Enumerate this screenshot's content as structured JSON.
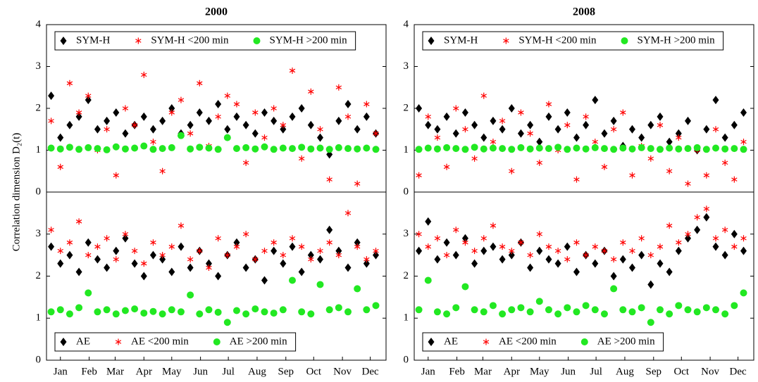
{
  "chart_data": [
    {
      "type": "scatter",
      "title": "2000",
      "ylabel": "Correlation dimension D₂(t)",
      "legend": "top",
      "xlim": [
        0,
        366
      ],
      "ylim": [
        0,
        4
      ],
      "yticks": [
        0,
        1,
        2,
        3,
        4
      ],
      "x": [
        5,
        15,
        25,
        35,
        45,
        55,
        65,
        75,
        85,
        95,
        105,
        115,
        125,
        135,
        145,
        155,
        165,
        175,
        185,
        195,
        205,
        215,
        225,
        235,
        245,
        255,
        265,
        275,
        285,
        295,
        305,
        315,
        325,
        335,
        345,
        355
      ],
      "series": [
        {
          "name": "SYM-H",
          "color": "#000000",
          "marker": "diamond",
          "values": [
            2.3,
            1.3,
            1.6,
            1.8,
            2.2,
            1.5,
            1.7,
            1.9,
            1.4,
            1.6,
            1.8,
            1.5,
            1.7,
            2.0,
            1.4,
            1.6,
            1.9,
            1.7,
            2.1,
            1.5,
            1.8,
            1.6,
            1.4,
            1.9,
            1.7,
            1.5,
            1.8,
            2.0,
            1.6,
            1.3,
            0.9,
            1.7,
            2.1,
            1.5,
            1.8,
            1.4
          ]
        },
        {
          "name": "SYM-H <200 min",
          "color": "#ff0000",
          "marker": "star",
          "values": [
            1.7,
            0.6,
            2.6,
            1.9,
            2.3,
            1.0,
            1.5,
            0.4,
            2.0,
            1.6,
            2.8,
            1.2,
            0.5,
            1.9,
            2.2,
            1.4,
            2.6,
            1.1,
            1.8,
            2.3,
            2.1,
            0.7,
            1.9,
            1.3,
            2.0,
            1.6,
            2.9,
            0.8,
            2.4,
            1.5,
            0.3,
            2.5,
            1.8,
            0.2,
            2.1,
            1.4
          ]
        },
        {
          "name": "SYM-H >200 min",
          "color": "#22e822",
          "marker": "circle",
          "values": [
            1.05,
            1.03,
            1.07,
            1.02,
            1.06,
            1.04,
            1.01,
            1.08,
            1.03,
            1.05,
            1.1,
            1.02,
            1.04,
            1.06,
            1.35,
            1.03,
            1.07,
            1.05,
            1.02,
            1.3,
            1.04,
            1.06,
            1.03,
            1.08,
            1.02,
            1.05,
            1.04,
            1.07,
            1.03,
            1.05,
            1.02,
            1.06,
            1.04,
            1.03,
            1.05,
            1.02
          ]
        }
      ]
    },
    {
      "type": "scatter",
      "title": "2008",
      "legend": "top",
      "xlim": [
        0,
        366
      ],
      "ylim": [
        0,
        4
      ],
      "yticks": [
        0,
        1,
        2,
        3,
        4
      ],
      "x": [
        5,
        15,
        25,
        35,
        45,
        55,
        65,
        75,
        85,
        95,
        105,
        115,
        125,
        135,
        145,
        155,
        165,
        175,
        185,
        195,
        205,
        215,
        225,
        235,
        245,
        255,
        265,
        275,
        285,
        295,
        305,
        315,
        325,
        335,
        345,
        355
      ],
      "series": [
        {
          "name": "SYM-H",
          "color": "#000000",
          "marker": "diamond",
          "values": [
            2.0,
            1.6,
            1.5,
            1.8,
            1.4,
            1.9,
            1.6,
            1.3,
            1.7,
            1.5,
            2.0,
            1.4,
            1.6,
            1.2,
            1.8,
            1.5,
            1.9,
            1.3,
            1.6,
            2.2,
            1.4,
            1.7,
            1.1,
            1.5,
            1.3,
            1.6,
            1.8,
            1.2,
            1.4,
            1.7,
            1.0,
            1.5,
            2.2,
            1.3,
            1.6,
            1.9
          ]
        },
        {
          "name": "SYM-H <200 min",
          "color": "#ff0000",
          "marker": "star",
          "values": [
            0.4,
            1.8,
            1.3,
            0.6,
            2.0,
            1.5,
            0.8,
            2.3,
            1.2,
            1.7,
            0.5,
            1.9,
            1.4,
            0.7,
            2.1,
            1.0,
            1.6,
            0.3,
            1.8,
            1.2,
            0.6,
            1.5,
            1.9,
            0.4,
            1.1,
            0.8,
            1.6,
            0.5,
            1.3,
            0.2,
            1.0,
            0.4,
            1.5,
            0.7,
            0.3,
            1.2
          ]
        },
        {
          "name": "SYM-H >200 min",
          "color": "#22e822",
          "marker": "circle",
          "values": [
            1.02,
            1.05,
            1.03,
            1.06,
            1.04,
            1.02,
            1.07,
            1.03,
            1.05,
            1.04,
            1.02,
            1.06,
            1.03,
            1.05,
            1.04,
            1.07,
            1.02,
            1.05,
            1.03,
            1.06,
            1.04,
            1.02,
            1.05,
            1.03,
            1.06,
            1.04,
            1.02,
            1.05,
            1.03,
            1.04,
            1.06,
            1.02,
            1.05,
            1.03,
            1.04,
            1.02
          ]
        }
      ]
    },
    {
      "type": "scatter",
      "legend": "bottom",
      "xlim": [
        0,
        366
      ],
      "ylim": [
        0,
        4
      ],
      "yticks": [
        0,
        1,
        2,
        3
      ],
      "xticks": [
        {
          "value": 15,
          "label": "Jan"
        },
        {
          "value": 46,
          "label": "Feb"
        },
        {
          "value": 74,
          "label": "Mar"
        },
        {
          "value": 105,
          "label": "Apr"
        },
        {
          "value": 135,
          "label": "May"
        },
        {
          "value": 166,
          "label": "Jun"
        },
        {
          "value": 196,
          "label": "Jul"
        },
        {
          "value": 227,
          "label": "Aug"
        },
        {
          "value": 258,
          "label": "Sep"
        },
        {
          "value": 288,
          "label": "Oct"
        },
        {
          "value": 319,
          "label": "Nov"
        },
        {
          "value": 349,
          "label": "Dec"
        }
      ],
      "x": [
        5,
        15,
        25,
        35,
        45,
        55,
        65,
        75,
        85,
        95,
        105,
        115,
        125,
        135,
        145,
        155,
        165,
        175,
        185,
        195,
        205,
        215,
        225,
        235,
        245,
        255,
        265,
        275,
        285,
        295,
        305,
        315,
        325,
        335,
        345,
        355
      ],
      "series": [
        {
          "name": "AE",
          "color": "#000000",
          "marker": "diamond",
          "values": [
            2.7,
            2.3,
            2.5,
            2.1,
            2.8,
            2.4,
            2.2,
            2.6,
            2.9,
            2.3,
            2.0,
            2.5,
            2.4,
            2.1,
            2.7,
            2.2,
            2.6,
            2.3,
            2.0,
            2.5,
            2.8,
            2.2,
            2.4,
            1.9,
            2.6,
            2.3,
            2.7,
            2.1,
            2.5,
            2.4,
            3.1,
            2.6,
            2.2,
            2.8,
            2.3,
            2.5
          ]
        },
        {
          "name": "AE <200 min",
          "color": "#ff0000",
          "marker": "star",
          "values": [
            3.1,
            2.6,
            2.8,
            3.3,
            2.5,
            2.7,
            2.9,
            2.4,
            3.0,
            2.6,
            2.3,
            2.8,
            2.5,
            2.7,
            3.2,
            2.4,
            2.6,
            2.2,
            2.9,
            2.5,
            2.7,
            3.0,
            2.4,
            2.6,
            2.8,
            2.5,
            2.9,
            2.7,
            2.4,
            2.6,
            2.8,
            2.5,
            3.5,
            2.7,
            2.4,
            2.6
          ]
        },
        {
          "name": "AE >200 min",
          "color": "#22e822",
          "marker": "circle",
          "values": [
            1.15,
            1.2,
            1.1,
            1.25,
            1.6,
            1.15,
            1.2,
            1.1,
            1.18,
            1.22,
            1.12,
            1.16,
            1.1,
            1.2,
            1.15,
            1.55,
            1.1,
            1.2,
            1.14,
            0.9,
            1.18,
            1.1,
            1.22,
            1.15,
            1.12,
            1.2,
            1.9,
            1.15,
            1.1,
            1.8,
            1.2,
            1.25,
            1.15,
            1.7,
            1.2,
            1.3
          ]
        }
      ]
    },
    {
      "type": "scatter",
      "legend": "bottom",
      "xlim": [
        0,
        366
      ],
      "ylim": [
        0,
        4
      ],
      "yticks": [
        0,
        1,
        2,
        3
      ],
      "xticks": [
        {
          "value": 15,
          "label": "Jan"
        },
        {
          "value": 46,
          "label": "Feb"
        },
        {
          "value": 74,
          "label": "Mar"
        },
        {
          "value": 105,
          "label": "Apr"
        },
        {
          "value": 135,
          "label": "May"
        },
        {
          "value": 166,
          "label": "Jun"
        },
        {
          "value": 196,
          "label": "Jul"
        },
        {
          "value": 227,
          "label": "Aug"
        },
        {
          "value": 258,
          "label": "Sep"
        },
        {
          "value": 288,
          "label": "Oct"
        },
        {
          "value": 319,
          "label": "Nov"
        },
        {
          "value": 349,
          "label": "Dec"
        }
      ],
      "x": [
        5,
        15,
        25,
        35,
        45,
        55,
        65,
        75,
        85,
        95,
        105,
        115,
        125,
        135,
        145,
        155,
        165,
        175,
        185,
        195,
        205,
        215,
        225,
        235,
        245,
        255,
        265,
        275,
        285,
        295,
        305,
        315,
        325,
        335,
        345,
        355
      ],
      "series": [
        {
          "name": "AE",
          "color": "#000000",
          "marker": "diamond",
          "values": [
            2.6,
            3.3,
            2.4,
            2.8,
            2.5,
            2.9,
            2.3,
            2.6,
            2.7,
            2.4,
            2.5,
            2.8,
            2.2,
            2.6,
            2.4,
            2.3,
            2.7,
            2.1,
            2.5,
            2.3,
            2.6,
            2.0,
            2.4,
            2.2,
            2.5,
            1.8,
            2.3,
            2.1,
            2.6,
            2.9,
            3.1,
            3.4,
            2.7,
            2.5,
            3.0,
            2.6
          ]
        },
        {
          "name": "AE <200 min",
          "color": "#ff0000",
          "marker": "star",
          "values": [
            3.0,
            2.7,
            2.9,
            2.5,
            3.1,
            2.8,
            2.6,
            2.9,
            3.2,
            2.7,
            2.6,
            2.8,
            2.5,
            3.0,
            2.7,
            2.6,
            2.4,
            2.8,
            2.5,
            2.7,
            2.6,
            2.4,
            2.8,
            2.6,
            2.9,
            2.5,
            2.7,
            3.2,
            2.8,
            3.0,
            3.4,
            3.6,
            2.9,
            3.1,
            2.7,
            2.9
          ]
        },
        {
          "name": "AE >200 min",
          "color": "#22e822",
          "marker": "circle",
          "values": [
            1.2,
            1.9,
            1.15,
            1.1,
            1.25,
            1.75,
            1.2,
            1.15,
            1.3,
            1.1,
            1.2,
            1.25,
            1.15,
            1.4,
            1.2,
            1.1,
            1.25,
            1.15,
            1.3,
            1.2,
            1.1,
            1.7,
            1.2,
            1.15,
            1.25,
            0.9,
            1.2,
            1.1,
            1.3,
            1.2,
            1.15,
            1.25,
            1.2,
            1.1,
            1.3,
            1.6
          ]
        }
      ]
    }
  ]
}
